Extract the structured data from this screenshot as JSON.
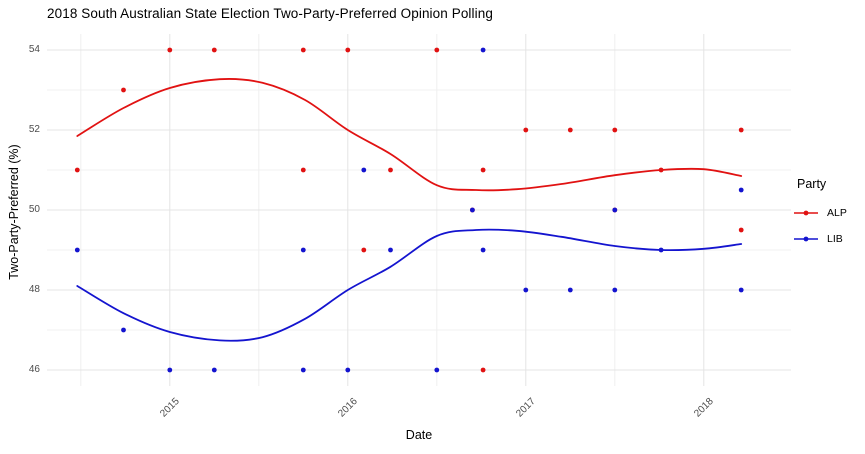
{
  "chart_data": {
    "type": "scatter",
    "title": "2018 South Australian State Election Two-Party-Preferred Opinion Polling",
    "xlabel": "Date",
    "ylabel": "Two-Party-Preferred (%)",
    "x_range": [
      2014.31,
      2018.49
    ],
    "y_range": [
      45.6,
      54.4
    ],
    "x_major_ticks": [
      {
        "value": 2015,
        "label": "2015"
      },
      {
        "value": 2016,
        "label": "2016"
      },
      {
        "value": 2017,
        "label": "2017"
      },
      {
        "value": 2018,
        "label": "2018"
      }
    ],
    "x_minor_ticks": [
      2014.5,
      2015.5,
      2016.5,
      2017.5
    ],
    "y_major_ticks": [
      {
        "value": 46,
        "label": "46"
      },
      {
        "value": 48,
        "label": "48"
      },
      {
        "value": 50,
        "label": "50"
      },
      {
        "value": 52,
        "label": "52"
      },
      {
        "value": 54,
        "label": "54"
      }
    ],
    "y_minor_ticks": [
      47,
      49,
      51,
      53
    ],
    "grid": {
      "major_color": "#e4e4e4",
      "minor_color": "#f0f0f0",
      "background": "#ffffff"
    },
    "legend": {
      "position": "right",
      "title": "Party"
    },
    "series": [
      {
        "name": "ALP",
        "color": "#e11212",
        "points": [
          [
            2014.48,
            51
          ],
          [
            2014.74,
            53
          ],
          [
            2015.0,
            54
          ],
          [
            2015.25,
            54
          ],
          [
            2015.75,
            54
          ],
          [
            2015.75,
            51
          ],
          [
            2016.0,
            54
          ],
          [
            2016.09,
            49
          ],
          [
            2016.24,
            51
          ],
          [
            2016.5,
            54
          ],
          [
            2016.7,
            50
          ],
          [
            2016.76,
            51
          ],
          [
            2016.76,
            46
          ],
          [
            2017.0,
            52
          ],
          [
            2017.25,
            52
          ],
          [
            2017.5,
            52
          ],
          [
            2017.5,
            50
          ],
          [
            2017.76,
            51
          ],
          [
            2018.21,
            52
          ],
          [
            2018.21,
            49.5
          ]
        ],
        "trend": [
          [
            2014.48,
            51.85
          ],
          [
            2014.74,
            52.55
          ],
          [
            2015.0,
            53.05
          ],
          [
            2015.28,
            53.27
          ],
          [
            2015.52,
            53.18
          ],
          [
            2015.76,
            52.75
          ],
          [
            2016.0,
            52.0
          ],
          [
            2016.24,
            51.4
          ],
          [
            2016.5,
            50.62
          ],
          [
            2016.72,
            50.5
          ],
          [
            2016.95,
            50.52
          ],
          [
            2017.2,
            50.65
          ],
          [
            2017.5,
            50.87
          ],
          [
            2017.76,
            51.0
          ],
          [
            2018.0,
            51.02
          ],
          [
            2018.21,
            50.85
          ]
        ]
      },
      {
        "name": "LIB",
        "color": "#1414cf",
        "points": [
          [
            2014.48,
            49
          ],
          [
            2014.74,
            47
          ],
          [
            2015.0,
            46
          ],
          [
            2015.25,
            46
          ],
          [
            2015.75,
            46
          ],
          [
            2015.75,
            49
          ],
          [
            2016.0,
            46
          ],
          [
            2016.09,
            51
          ],
          [
            2016.24,
            49
          ],
          [
            2016.5,
            46
          ],
          [
            2016.7,
            50
          ],
          [
            2016.76,
            49
          ],
          [
            2016.76,
            54
          ],
          [
            2017.0,
            48
          ],
          [
            2017.25,
            48
          ],
          [
            2017.5,
            48
          ],
          [
            2017.5,
            50
          ],
          [
            2017.76,
            49
          ],
          [
            2018.21,
            48
          ],
          [
            2018.21,
            50.5
          ]
        ],
        "trend": [
          [
            2014.48,
            48.1
          ],
          [
            2014.74,
            47.42
          ],
          [
            2015.0,
            46.95
          ],
          [
            2015.28,
            46.74
          ],
          [
            2015.52,
            46.82
          ],
          [
            2015.76,
            47.28
          ],
          [
            2016.0,
            48.0
          ],
          [
            2016.24,
            48.58
          ],
          [
            2016.5,
            49.35
          ],
          [
            2016.72,
            49.5
          ],
          [
            2016.95,
            49.48
          ],
          [
            2017.2,
            49.33
          ],
          [
            2017.5,
            49.1
          ],
          [
            2017.76,
            49.0
          ],
          [
            2018.0,
            49.03
          ],
          [
            2018.21,
            49.15
          ]
        ]
      }
    ]
  }
}
